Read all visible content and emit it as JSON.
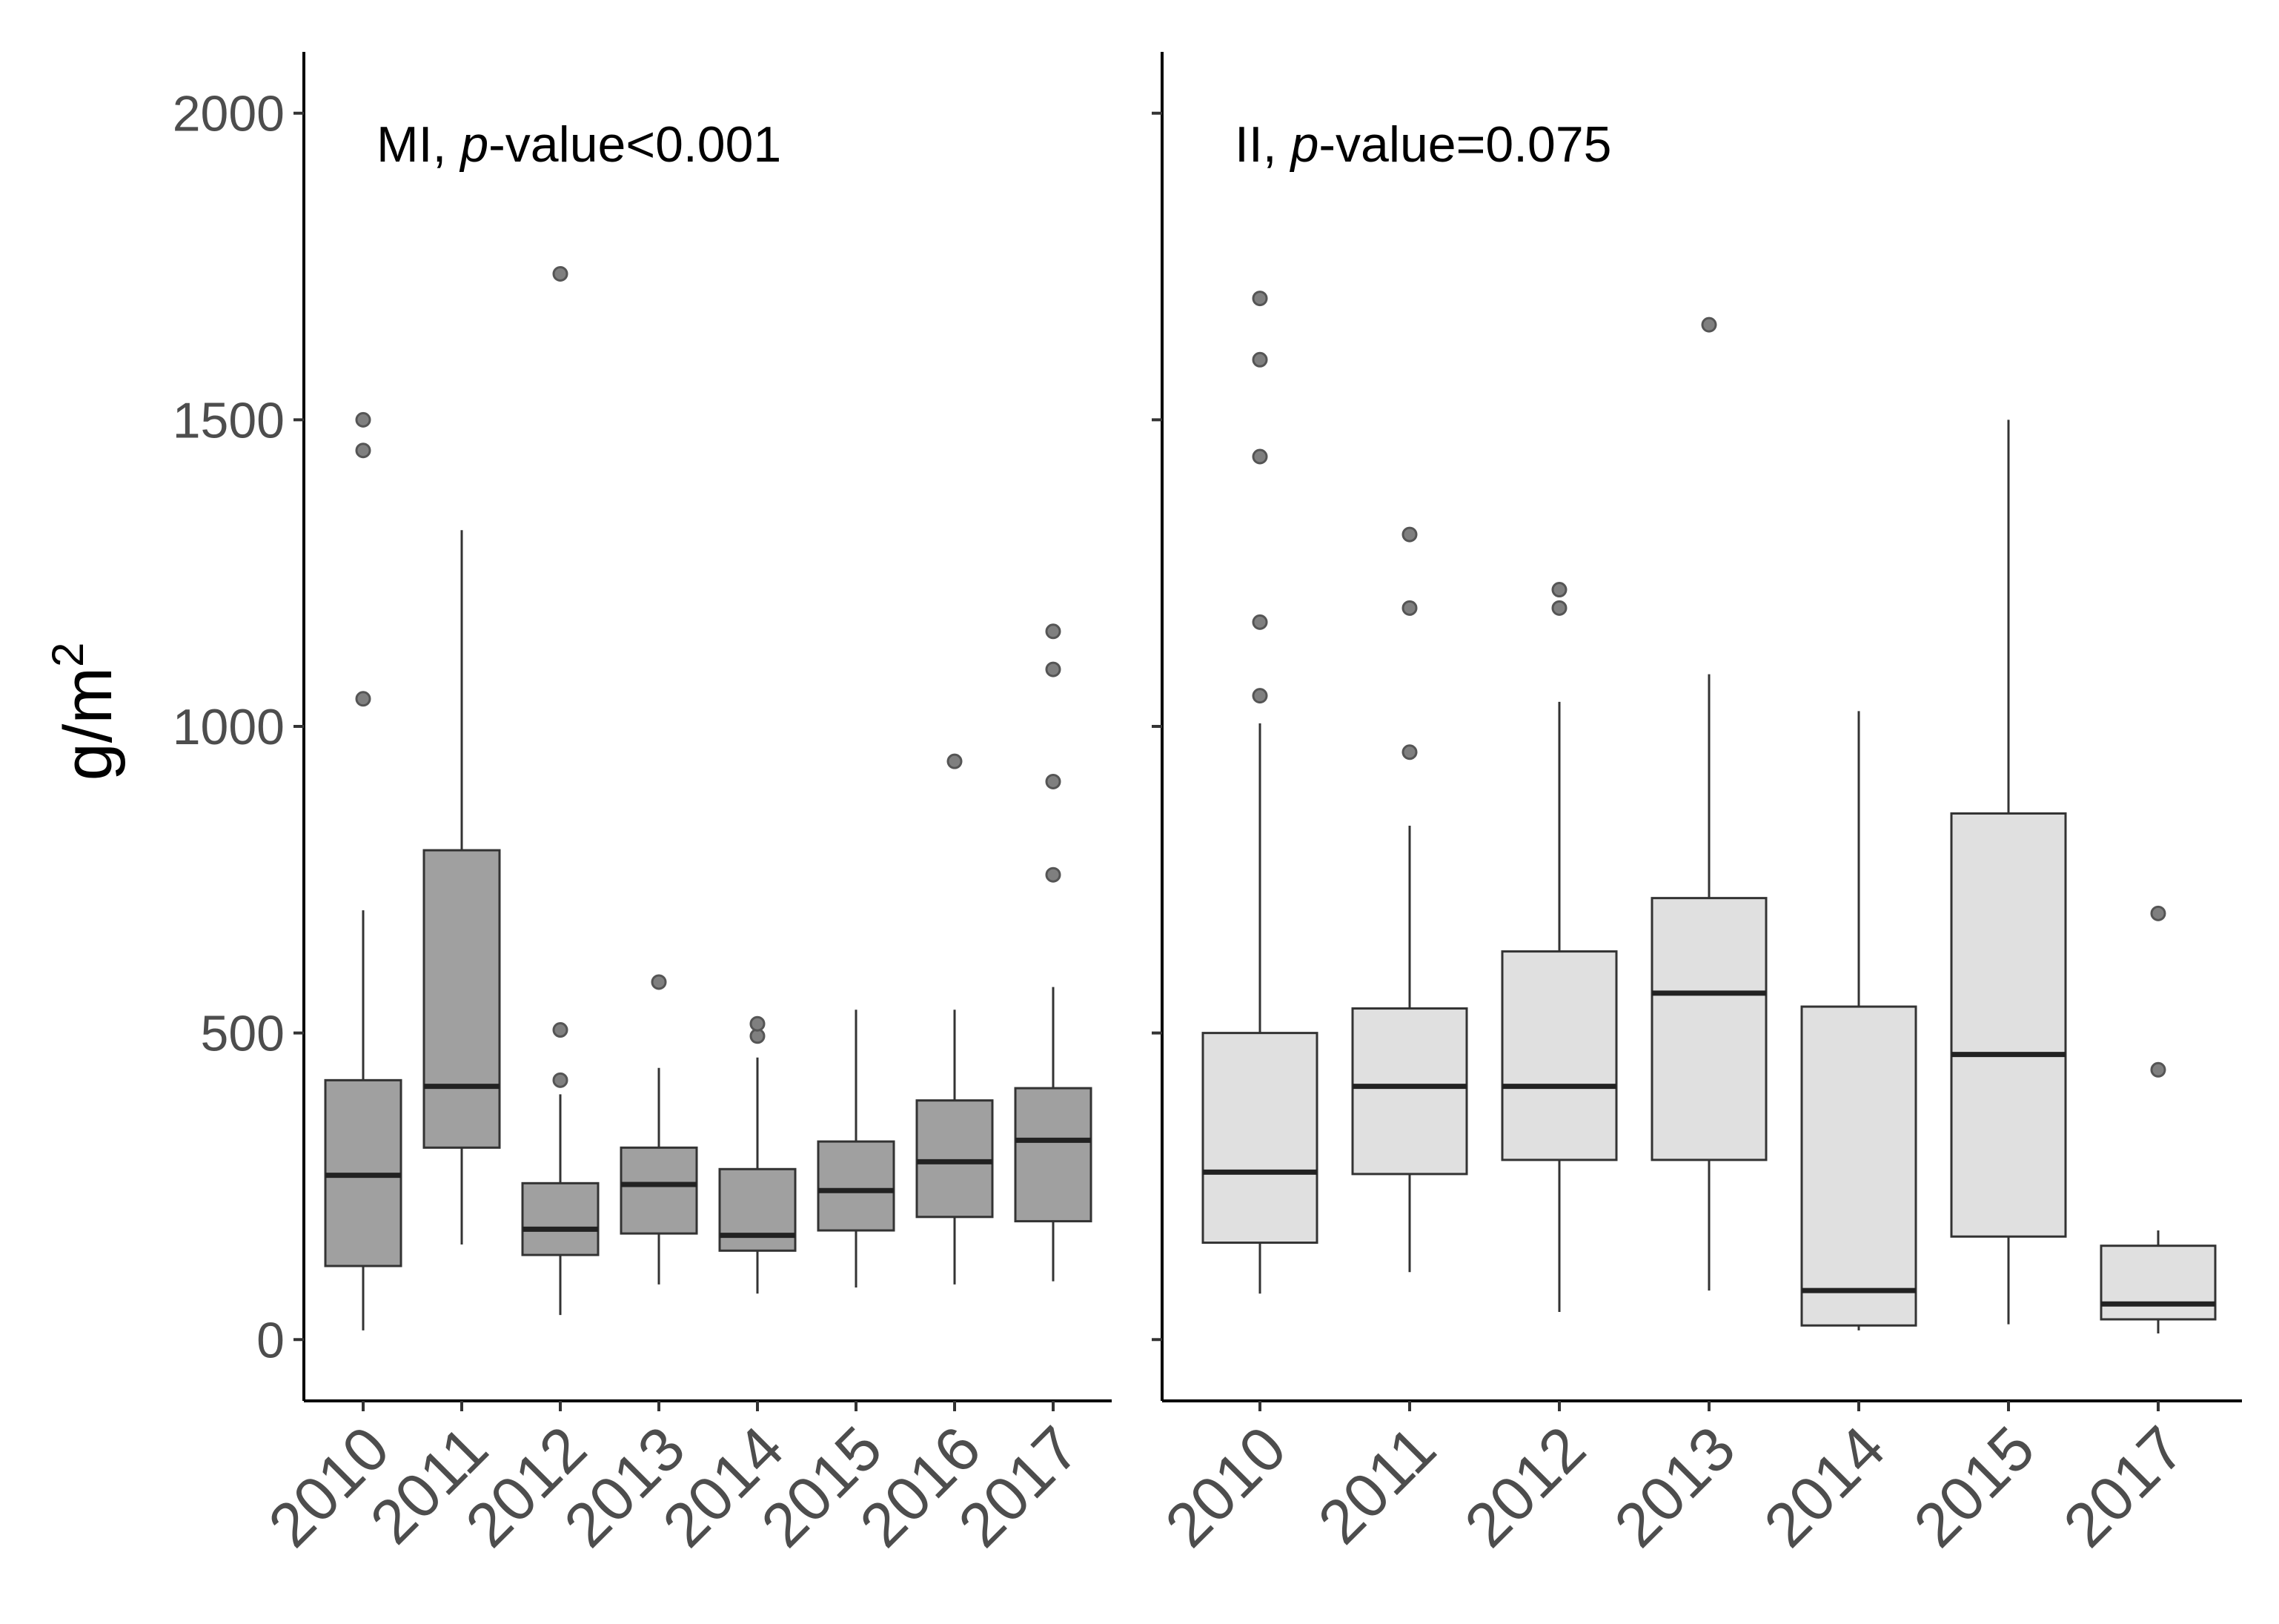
{
  "chart_data": {
    "type": "boxplot",
    "ylabel": "g/m",
    "ylabel_superscript": "2",
    "ylim": [
      -100,
      2100
    ],
    "yticks": [
      0,
      500,
      1000,
      1500,
      2000
    ],
    "ytick_labels": [
      "0",
      "500",
      "1000",
      "1500",
      "2000"
    ],
    "grid": false,
    "facets": [
      {
        "name": "MI",
        "title_prefix": "MI, ",
        "title_italic": "p",
        "title_suffix": "-value<0.001",
        "fill": "#a0a0a0",
        "categories": [
          "2010",
          "2011",
          "2012",
          "2013",
          "2014",
          "2015",
          "2016",
          "2017"
        ],
        "boxes": [
          {
            "whisker_low": 15,
            "q1": 120,
            "median": 268,
            "q3": 423,
            "whisker_high": 700,
            "outliers": [
              1045,
              1450,
              1500
            ]
          },
          {
            "whisker_low": 155,
            "q1": 313,
            "median": 413,
            "q3": 798,
            "whisker_high": 1320,
            "outliers": []
          },
          {
            "whisker_low": 40,
            "q1": 138,
            "median": 180,
            "q3": 255,
            "whisker_high": 400,
            "outliers": [
              423,
              505,
              1738
            ]
          },
          {
            "whisker_low": 90,
            "q1": 173,
            "median": 253,
            "q3": 313,
            "whisker_high": 443,
            "outliers": [
              583
            ]
          },
          {
            "whisker_low": 75,
            "q1": 145,
            "median": 170,
            "q3": 278,
            "whisker_high": 460,
            "outliers": [
              495,
              515
            ]
          },
          {
            "whisker_low": 85,
            "q1": 178,
            "median": 243,
            "q3": 323,
            "whisker_high": 538,
            "outliers": []
          },
          {
            "whisker_low": 90,
            "q1": 200,
            "median": 290,
            "q3": 390,
            "whisker_high": 538,
            "outliers": [
              943
            ]
          },
          {
            "whisker_low": 95,
            "q1": 193,
            "median": 325,
            "q3": 410,
            "whisker_high": 575,
            "outliers": [
              758,
              910,
              1093,
              1155
            ]
          }
        ]
      },
      {
        "name": "II",
        "title_prefix": "II, ",
        "title_italic": "p",
        "title_suffix": "-value=0.075",
        "fill": "#e0e0e0",
        "categories": [
          "2010",
          "2011",
          "2012",
          "2013",
          "2014",
          "2015",
          "2017"
        ],
        "boxes": [
          {
            "whisker_low": 75,
            "q1": 158,
            "median": 273,
            "q3": 500,
            "whisker_high": 1005,
            "outliers": [
              1050,
              1170,
              1440,
              1598,
              1698
            ]
          },
          {
            "whisker_low": 110,
            "q1": 270,
            "median": 413,
            "q3": 540,
            "whisker_high": 838,
            "outliers": [
              958,
              1193,
              1313
            ]
          },
          {
            "whisker_low": 45,
            "q1": 293,
            "median": 413,
            "q3": 633,
            "whisker_high": 1040,
            "outliers": [
              1193,
              1223
            ]
          },
          {
            "whisker_low": 80,
            "q1": 293,
            "median": 565,
            "q3": 720,
            "whisker_high": 1085,
            "outliers": [
              1655
            ]
          },
          {
            "whisker_low": 15,
            "q1": 23,
            "median": 80,
            "q3": 543,
            "whisker_high": 1025,
            "outliers": []
          },
          {
            "whisker_low": 25,
            "q1": 168,
            "median": 465,
            "q3": 858,
            "whisker_high": 1500,
            "outliers": []
          },
          {
            "whisker_low": 10,
            "q1": 33,
            "median": 58,
            "q3": 153,
            "whisker_high": 178,
            "outliers": [
              440,
              695
            ]
          }
        ]
      }
    ]
  }
}
